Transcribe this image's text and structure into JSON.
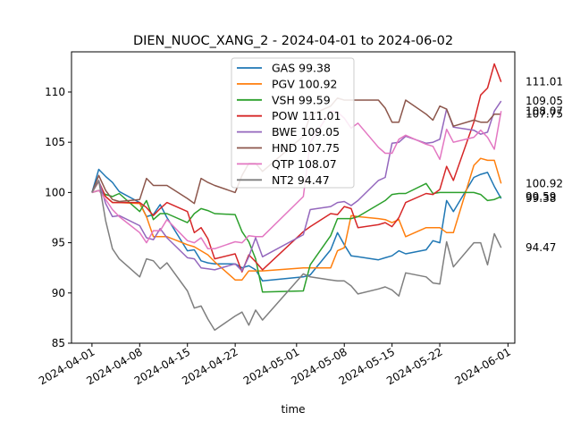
{
  "chart_data": {
    "type": "line",
    "title": "DIEN_NUOC_XANG_2 - 2024-04-01 to 2024-06-02",
    "xlabel": "time",
    "ylabel": "",
    "xlim": [
      "2024-03-29",
      "2024-06-02"
    ],
    "ylim": [
      85,
      114
    ],
    "x_ticks": [
      "2024-04-01",
      "2024-04-08",
      "2024-04-15",
      "2024-04-22",
      "2024-05-01",
      "2024-05-08",
      "2024-05-15",
      "2024-05-22",
      "2024-06-01"
    ],
    "y_ticks": [
      85,
      90,
      95,
      100,
      105,
      110
    ],
    "grid": false,
    "legend_position": "upper-center",
    "x": [
      "2024-04-01",
      "2024-04-02",
      "2024-04-03",
      "2024-04-04",
      "2024-04-05",
      "2024-04-08",
      "2024-04-09",
      "2024-04-10",
      "2024-04-11",
      "2024-04-12",
      "2024-04-15",
      "2024-04-16",
      "2024-04-17",
      "2024-04-18",
      "2024-04-19",
      "2024-04-22",
      "2024-04-23",
      "2024-04-24",
      "2024-04-25",
      "2024-04-26",
      "2024-05-02",
      "2024-05-03",
      "2024-05-06",
      "2024-05-07",
      "2024-05-08",
      "2024-05-09",
      "2024-05-10",
      "2024-05-13",
      "2024-05-14",
      "2024-05-15",
      "2024-05-16",
      "2024-05-17",
      "2024-05-20",
      "2024-05-21",
      "2024-05-22",
      "2024-05-23",
      "2024-05-24",
      "2024-05-27",
      "2024-05-28",
      "2024-05-29",
      "2024-05-30",
      "2024-05-31"
    ],
    "series": [
      {
        "name": "GAS",
        "label": "GAS 99.38",
        "color": "#1f77b4",
        "end": "99.38",
        "values": [
          100,
          102.3,
          101.6,
          101.0,
          100.1,
          99.0,
          97.6,
          97.8,
          98.8,
          97.5,
          94.2,
          94.3,
          93.2,
          93.0,
          92.9,
          92.9,
          92.5,
          92.7,
          92.3,
          91.2,
          91.6,
          91.8,
          94.3,
          96.0,
          94.8,
          93.7,
          93.6,
          93.3,
          93.5,
          93.7,
          94.2,
          93.9,
          94.3,
          95.2,
          95.0,
          99.2,
          98.1,
          101.5,
          101.8,
          102.0,
          100.6,
          99.4
        ]
      },
      {
        "name": "PGV",
        "label": "PGV 100.92",
        "color": "#ff7f0e",
        "end": "100.92",
        "values": [
          100,
          100.2,
          99.6,
          99.0,
          99.0,
          98.9,
          97.6,
          95.6,
          95.6,
          95.6,
          94.8,
          94.6,
          94.2,
          93.8,
          93.1,
          91.3,
          91.3,
          92.2,
          92.2,
          92.2,
          92.5,
          92.5,
          92.5,
          94.2,
          94.5,
          97.7,
          97.6,
          97.4,
          97.3,
          97.0,
          97.3,
          95.6,
          96.5,
          96.5,
          96.5,
          96.0,
          96.0,
          102.7,
          103.4,
          103.2,
          103.2,
          100.9
        ]
      },
      {
        "name": "VSH",
        "label": "VSH 99.59",
        "color": "#2ca02c",
        "end": "99.59",
        "values": [
          100,
          100.2,
          99.8,
          99.6,
          99.9,
          98.1,
          99.2,
          97.3,
          97.9,
          97.9,
          97.0,
          97.9,
          98.4,
          98.2,
          97.9,
          97.8,
          96.1,
          95.1,
          93.4,
          90.1,
          90.2,
          92.8,
          95.7,
          97.4,
          97.4,
          97.4,
          97.6,
          98.8,
          99.2,
          99.8,
          99.9,
          99.9,
          100.9,
          99.9,
          100.0,
          100.0,
          100.0,
          100.0,
          99.8,
          99.2,
          99.3,
          99.6
        ]
      },
      {
        "name": "POW",
        "label": "POW 111.01",
        "color": "#d62728",
        "end": "111.01",
        "values": [
          100,
          101.1,
          99.6,
          99.0,
          99.0,
          99.0,
          98.5,
          97.7,
          98.4,
          99.0,
          98.1,
          96.0,
          96.5,
          95.4,
          93.4,
          93.9,
          92.1,
          93.8,
          93.1,
          92.3,
          96.1,
          96.6,
          97.9,
          97.8,
          98.6,
          98.4,
          96.5,
          96.8,
          97.0,
          96.6,
          97.5,
          99.0,
          99.9,
          99.8,
          100.3,
          102.6,
          101.2,
          107.0,
          109.7,
          110.4,
          112.8,
          111.0
        ]
      },
      {
        "name": "BWE",
        "label": "BWE 109.05",
        "color": "#9467bd",
        "end": "109.05",
        "values": [
          100,
          101.2,
          98.9,
          97.6,
          97.7,
          96.7,
          95.5,
          95.3,
          96.4,
          95.5,
          93.5,
          93.4,
          92.5,
          92.4,
          92.3,
          92.9,
          92.2,
          93.6,
          95.5,
          93.6,
          95.8,
          98.3,
          98.6,
          99.0,
          99.1,
          98.7,
          99.2,
          101.2,
          101.5,
          104.9,
          105.0,
          105.6,
          104.9,
          105.0,
          105.3,
          108.3,
          106.5,
          106.2,
          105.8,
          106.0,
          108.1,
          109.1
        ]
      },
      {
        "name": "HND",
        "label": "HND 107.75",
        "color": "#8c564b",
        "end": "107.75",
        "values": [
          100,
          101.7,
          100.2,
          99.3,
          99.1,
          99.3,
          101.4,
          100.7,
          100.7,
          100.7,
          99.4,
          98.9,
          101.4,
          101.0,
          100.7,
          100.0,
          101.7,
          102.9,
          102.9,
          102.1,
          105.6,
          107.7,
          108.6,
          109.4,
          109.2,
          109.2,
          109.2,
          109.2,
          108.4,
          107.0,
          107.0,
          109.2,
          107.8,
          107.2,
          108.6,
          108.3,
          106.6,
          107.2,
          107.0,
          107.0,
          107.8,
          107.8
        ]
      },
      {
        "name": "QTP",
        "label": "QTP 108.07",
        "color": "#e377c2",
        "end": "108.07",
        "values": [
          100,
          100.2,
          99.3,
          98.3,
          97.6,
          96.0,
          95.0,
          96.2,
          96.2,
          97.3,
          95.2,
          95.0,
          95.5,
          94.4,
          94.4,
          95.1,
          95.0,
          95.7,
          95.6,
          95.6,
          99.6,
          105.0,
          108.1,
          108.0,
          107.4,
          106.4,
          106.9,
          104.5,
          103.9,
          103.9,
          105.3,
          105.7,
          104.8,
          104.6,
          103.3,
          106.3,
          105.0,
          105.5,
          106.2,
          105.5,
          104.3,
          108.1
        ]
      },
      {
        "name": "NT2",
        "label": "NT2 94.47",
        "color": "#7f7f7f",
        "end": "94.47",
        "values": [
          100,
          101.2,
          97.2,
          94.4,
          93.4,
          91.6,
          93.4,
          93.2,
          92.4,
          93.0,
          90.2,
          88.5,
          88.7,
          87.4,
          86.3,
          87.7,
          88.1,
          86.8,
          88.3,
          87.3,
          91.9,
          91.6,
          91.3,
          91.2,
          91.2,
          90.7,
          89.9,
          90.4,
          90.6,
          90.3,
          89.7,
          92.0,
          91.6,
          91.0,
          90.9,
          95.1,
          92.6,
          95.0,
          95.0,
          92.8,
          95.9,
          94.5
        ]
      }
    ]
  }
}
